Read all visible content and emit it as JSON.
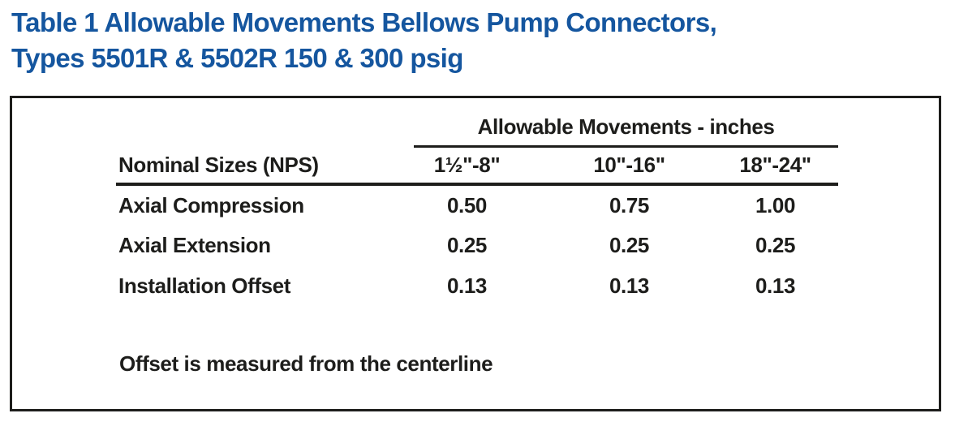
{
  "title": {
    "line1": "Table 1 Allowable Movements Bellows Pump Connectors,",
    "line2": "Types 5501R & 5502R 150 & 300 psig",
    "color": "#15569f"
  },
  "table": {
    "span_header": "Allowable Movements - inches",
    "row_header_label": "Nominal Sizes (NPS)",
    "columns": [
      "1½\"-8\"",
      "10\"-16\"",
      "18\"-24\""
    ],
    "rows": [
      {
        "label": "Axial Compression",
        "values": [
          "0.50",
          "0.75",
          "1.00"
        ]
      },
      {
        "label": "Axial Extension",
        "values": [
          "0.25",
          "0.25",
          "0.25"
        ]
      },
      {
        "label": "Installation Offset",
        "values": [
          "0.13",
          "0.13",
          "0.13"
        ]
      }
    ],
    "note": "Offset is measured from the centerline"
  }
}
